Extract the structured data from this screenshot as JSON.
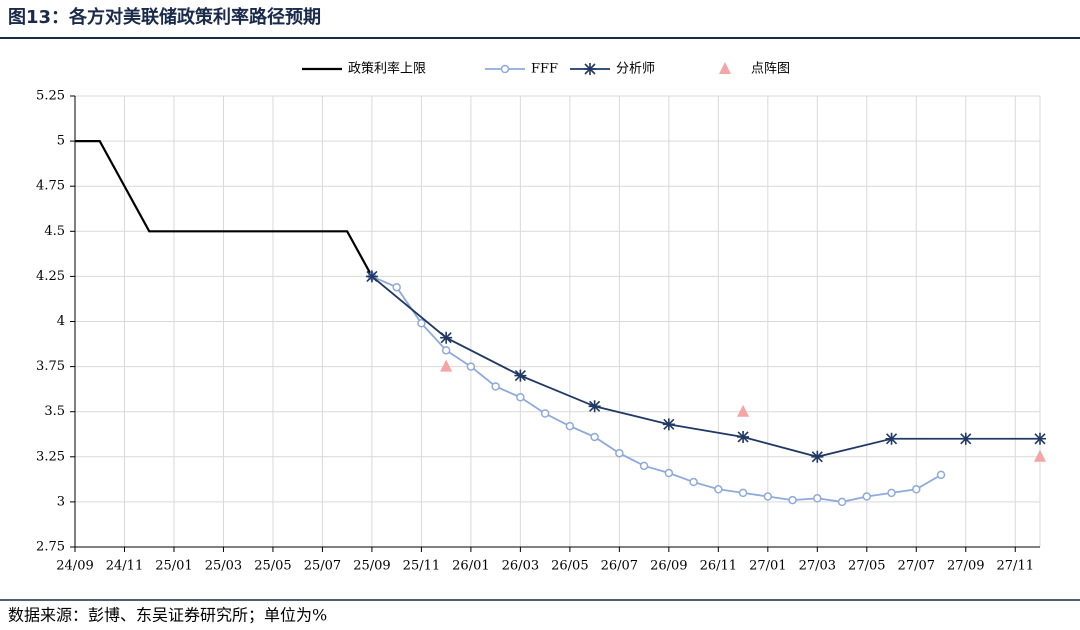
{
  "chart_data": {
    "type": "line",
    "title": "图13：各方对美联储政策利率路径预期",
    "source": "数据来源：彭博、东吴证券研究所；单位为%",
    "xlim": [
      "24/09",
      "27/12"
    ],
    "xticks": [
      "24/09",
      "24/11",
      "25/01",
      "25/03",
      "25/05",
      "25/07",
      "25/09",
      "25/11",
      "26/01",
      "26/03",
      "26/05",
      "26/07",
      "26/09",
      "26/11",
      "27/01",
      "27/03",
      "27/05",
      "27/07",
      "27/09",
      "27/11"
    ],
    "ylim": [
      2.75,
      5.25
    ],
    "yticks": [
      2.75,
      3,
      3.25,
      3.5,
      3.75,
      4,
      4.25,
      4.5,
      4.75,
      5,
      5.25
    ],
    "grid": true,
    "legend": "top",
    "series": [
      {
        "name": "政策利率上限",
        "color": "#000000",
        "marker": "none",
        "line": true,
        "x": [
          "24/09",
          "24/10",
          "24/12",
          "25/08",
          "25/09"
        ],
        "values": [
          5,
          5,
          4.5,
          4.5,
          4.25
        ]
      },
      {
        "name": "FFF",
        "color": "#8eaadb",
        "marker": "circle",
        "line": true,
        "x": [
          "25/09",
          "25/10",
          "25/11",
          "25/12",
          "26/01",
          "26/02",
          "26/03",
          "26/04",
          "26/05",
          "26/06",
          "26/07",
          "26/08",
          "26/09",
          "26/10",
          "26/11",
          "26/12",
          "27/01",
          "27/02",
          "27/03",
          "27/04",
          "27/05",
          "27/06",
          "27/07",
          "27/08"
        ],
        "values": [
          4.25,
          4.19,
          3.99,
          3.84,
          3.75,
          3.64,
          3.58,
          3.49,
          3.42,
          3.36,
          3.27,
          3.2,
          3.16,
          3.11,
          3.07,
          3.05,
          3.03,
          3.01,
          3.02,
          3.0,
          3.03,
          3.05,
          3.07,
          3.15
        ]
      },
      {
        "name": "分析师",
        "color": "#203864",
        "marker": "star",
        "line": true,
        "x": [
          "25/09",
          "25/12",
          "26/03",
          "26/06",
          "26/09",
          "26/12",
          "27/03",
          "27/06",
          "27/09",
          "27/12"
        ],
        "values": [
          4.25,
          3.91,
          3.7,
          3.53,
          3.43,
          3.36,
          3.25,
          3.35,
          3.35,
          3.35
        ]
      },
      {
        "name": "点阵图",
        "color": "#f4a6a6",
        "marker": "triangle",
        "line": false,
        "x": [
          "25/12",
          "26/12",
          "27/12"
        ],
        "values": [
          3.75,
          3.5,
          3.25
        ]
      }
    ]
  }
}
